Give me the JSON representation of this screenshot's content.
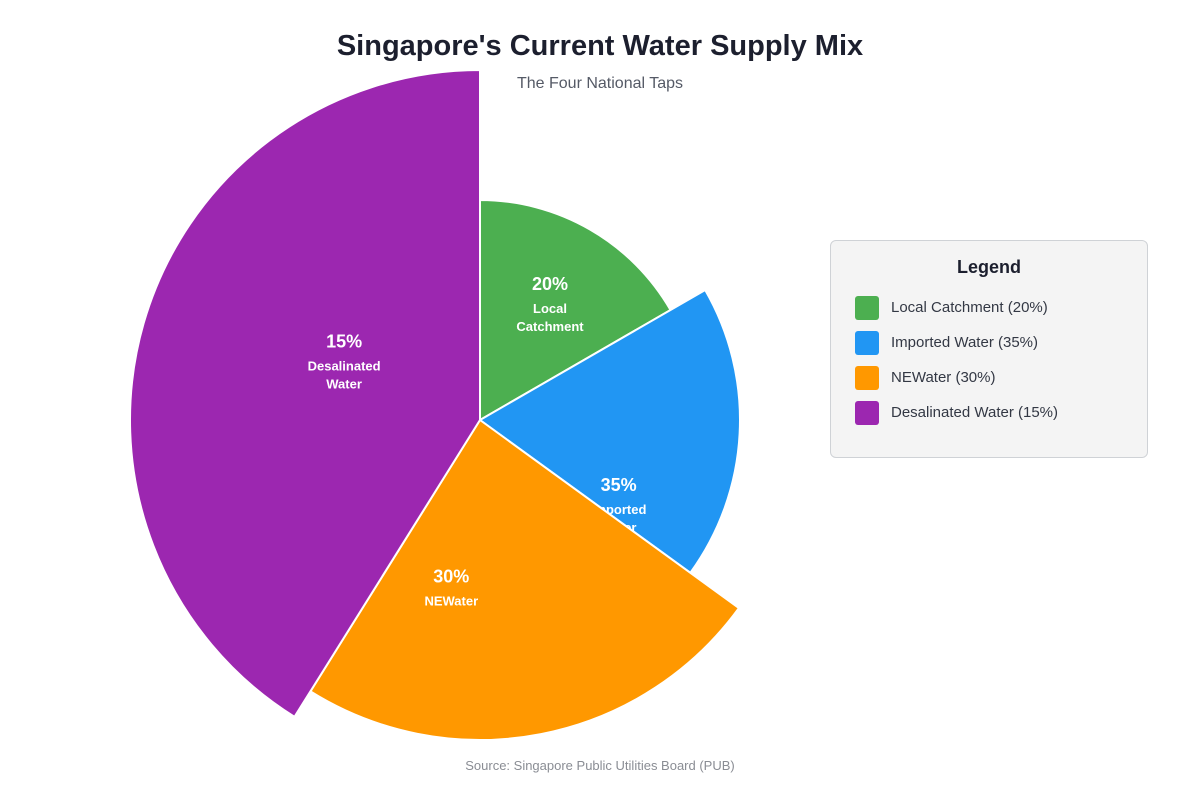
{
  "chart_data": {
    "type": "pie",
    "title": "Singapore's Current Water Supply Mix",
    "subtitle": "The Four National Taps",
    "source": "Source: Singapore Public Utilities Board (PUB)",
    "slices": [
      {
        "label_lines": [
          "Local",
          "Catchment"
        ],
        "value": 20,
        "value_label": "20%",
        "color": "#4caf50"
      },
      {
        "label_lines": [
          "Imported",
          "Water"
        ],
        "value": 35,
        "value_label": "35%",
        "color": "#2196f3"
      },
      {
        "label_lines": [
          "NEWater"
        ],
        "value": 30,
        "value_label": "30%",
        "color": "#ff9800"
      },
      {
        "label_lines": [
          "Desalinated",
          "Water"
        ],
        "value": 15,
        "value_label": "15%",
        "color": "#9c27b0"
      }
    ],
    "legend": {
      "title": "Legend",
      "placement": "right",
      "items": [
        {
          "label": "Local Catchment (20%)",
          "color": "#4caf50"
        },
        {
          "label": "Imported Water (35%)",
          "color": "#2196f3"
        },
        {
          "label": "NEWater (30%)",
          "color": "#ff9800"
        },
        {
          "label": "Desalinated Water (15%)",
          "color": "#9c27b0"
        }
      ]
    }
  }
}
